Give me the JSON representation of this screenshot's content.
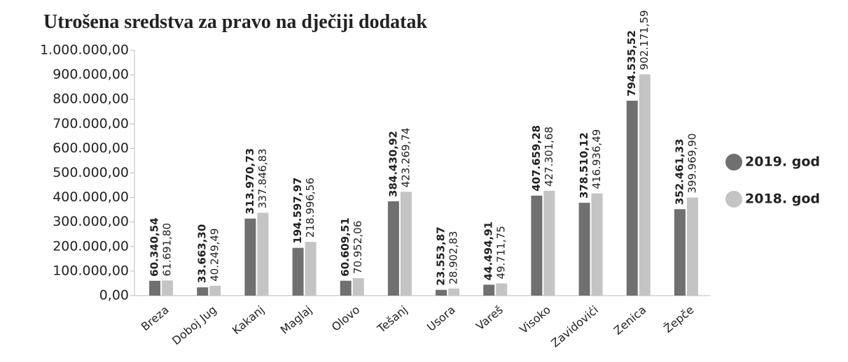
{
  "chart_data": {
    "type": "bar",
    "title": "Utrošena sredstva za pravo na dječiji dodatak",
    "categories": [
      "Breza",
      "Doboj Jug",
      "Kakanj",
      "Maglaj",
      "Olovo",
      "Tešanj",
      "Usora",
      "Vareš",
      "Visoko",
      "Zavidovići",
      "Zenica",
      "Žepče"
    ],
    "series": [
      {
        "name": "2019. god",
        "color": "#707070",
        "values": [
          60340.54,
          33663.3,
          313970.73,
          194597.97,
          60609.51,
          384430.92,
          23553.87,
          44494.91,
          407659.28,
          378510.12,
          794535.52,
          352461.33
        ],
        "value_labels": [
          "60.340,54",
          "33.663,30",
          "313.970,73",
          "194.597,97",
          "60.609,51",
          "384.430,92",
          "23.553,87",
          "44.494,91",
          "407.659,28",
          "378.510,12",
          "794.535,52",
          "352.461,33"
        ]
      },
      {
        "name": "2018. god",
        "color": "#c4c4c4",
        "values": [
          61691.8,
          40249.49,
          337846.83,
          218996.56,
          70952.06,
          423269.74,
          28902.83,
          49711.75,
          427301.68,
          416936.49,
          902171.59,
          399969.9
        ],
        "value_labels": [
          "61.691,80",
          "40.249,49",
          "337.846,83",
          "218.996,56",
          "70.952,06",
          "423.269,74",
          "28.902,83",
          "49.711,75",
          "427.301,68",
          "416.936,49",
          "902.171,59",
          "399.969,90"
        ]
      }
    ],
    "ylim": [
      0,
      1000000
    ],
    "yticks": [
      {
        "value": 0,
        "label": "0,00"
      },
      {
        "value": 100000,
        "label": "100.000,00"
      },
      {
        "value": 200000,
        "label": "200.000,00"
      },
      {
        "value": 300000,
        "label": "300.000,00"
      },
      {
        "value": 400000,
        "label": "400.000,00"
      },
      {
        "value": 500000,
        "label": "500.000,00"
      },
      {
        "value": 600000,
        "label": "600.000,00"
      },
      {
        "value": 700000,
        "label": "700.000,00"
      },
      {
        "value": 800000,
        "label": "800.000,00"
      },
      {
        "value": 900000,
        "label": "900.000,00"
      },
      {
        "value": 1000000,
        "label": "1.000.000,00"
      }
    ],
    "legend": "right"
  }
}
